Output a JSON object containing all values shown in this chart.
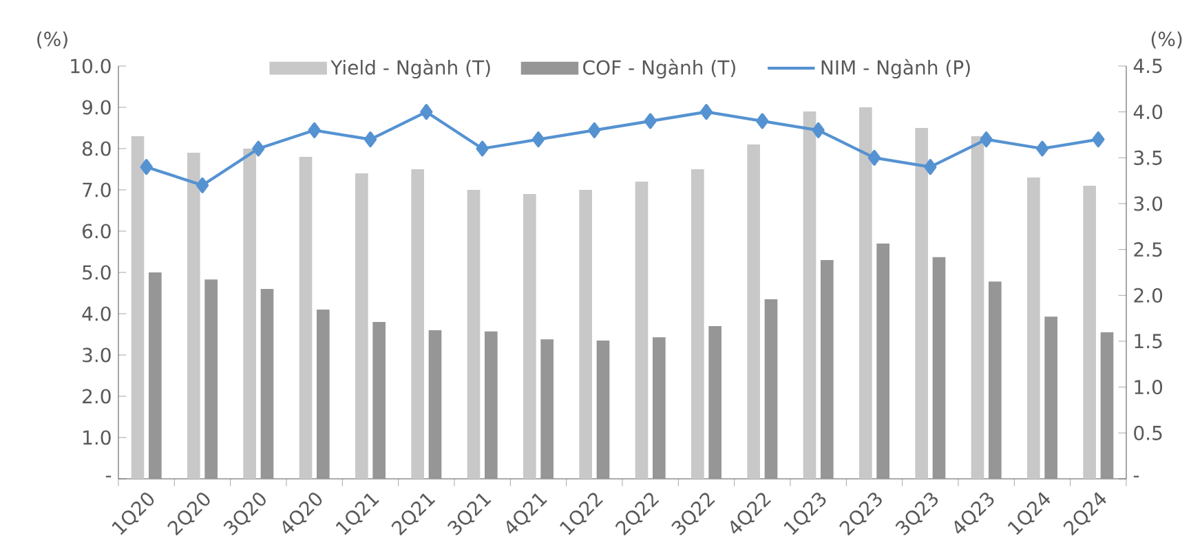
{
  "chart_data": {
    "type": "bar",
    "ylabel": "(%)",
    "y2label": "(%)",
    "categories": [
      "1Q20",
      "2Q20",
      "3Q20",
      "4Q20",
      "1Q21",
      "2Q21",
      "3Q21",
      "4Q21",
      "1Q22",
      "2Q22",
      "3Q22",
      "4Q22",
      "1Q23",
      "2Q23",
      "3Q23",
      "4Q23",
      "1Q24",
      "2Q24"
    ],
    "series": [
      {
        "name": "Yield  - Ngành (T)",
        "color": "#c8c8c8",
        "values": [
          8.3,
          7.9,
          8.0,
          7.8,
          7.4,
          7.5,
          7.0,
          6.9,
          7.0,
          7.2,
          7.5,
          8.1,
          8.9,
          9.0,
          8.5,
          8.3,
          7.3,
          7.1
        ]
      },
      {
        "name": "COF - Ngành (T)",
        "color": "#969696",
        "values": [
          5.0,
          4.83,
          4.6,
          4.1,
          3.8,
          3.6,
          3.57,
          3.38,
          3.35,
          3.43,
          3.7,
          4.35,
          5.3,
          5.7,
          5.37,
          4.78,
          3.93,
          3.55
        ]
      },
      {
        "name": "NIM - Ngành (P)",
        "type": "line",
        "axis": "y2",
        "color": "#5592d1",
        "marker": "diamond",
        "values": [
          3.4,
          3.2,
          3.6,
          3.8,
          3.7,
          4.0,
          3.6,
          3.7,
          3.8,
          3.9,
          4.0,
          3.9,
          3.8,
          3.5,
          3.4,
          3.7,
          3.6,
          3.7
        ]
      }
    ],
    "ylim": [
      0,
      10
    ],
    "yticks": [
      {
        "value": 0,
        "label": "-"
      },
      {
        "value": 1,
        "label": "1.0"
      },
      {
        "value": 2,
        "label": "2.0"
      },
      {
        "value": 3,
        "label": "3.0"
      },
      {
        "value": 4,
        "label": "4.0"
      },
      {
        "value": 5,
        "label": "5.0"
      },
      {
        "value": 6,
        "label": "6.0"
      },
      {
        "value": 7,
        "label": "7.0"
      },
      {
        "value": 8,
        "label": "8.0"
      },
      {
        "value": 9,
        "label": "9.0"
      },
      {
        "value": 10,
        "label": "10.0"
      }
    ],
    "y2lim": [
      0,
      4.5
    ],
    "y2ticks": [
      {
        "value": 0,
        "label": "-"
      },
      0.5,
      {
        "value": 1,
        "label": "1.0"
      },
      1.5,
      {
        "value": 2,
        "label": "2.0"
      },
      2.5,
      {
        "value": 3,
        "label": "3.0"
      },
      3.5,
      {
        "value": 4,
        "label": "4.0"
      },
      4.5
    ],
    "legend": "top",
    "grid": false
  }
}
